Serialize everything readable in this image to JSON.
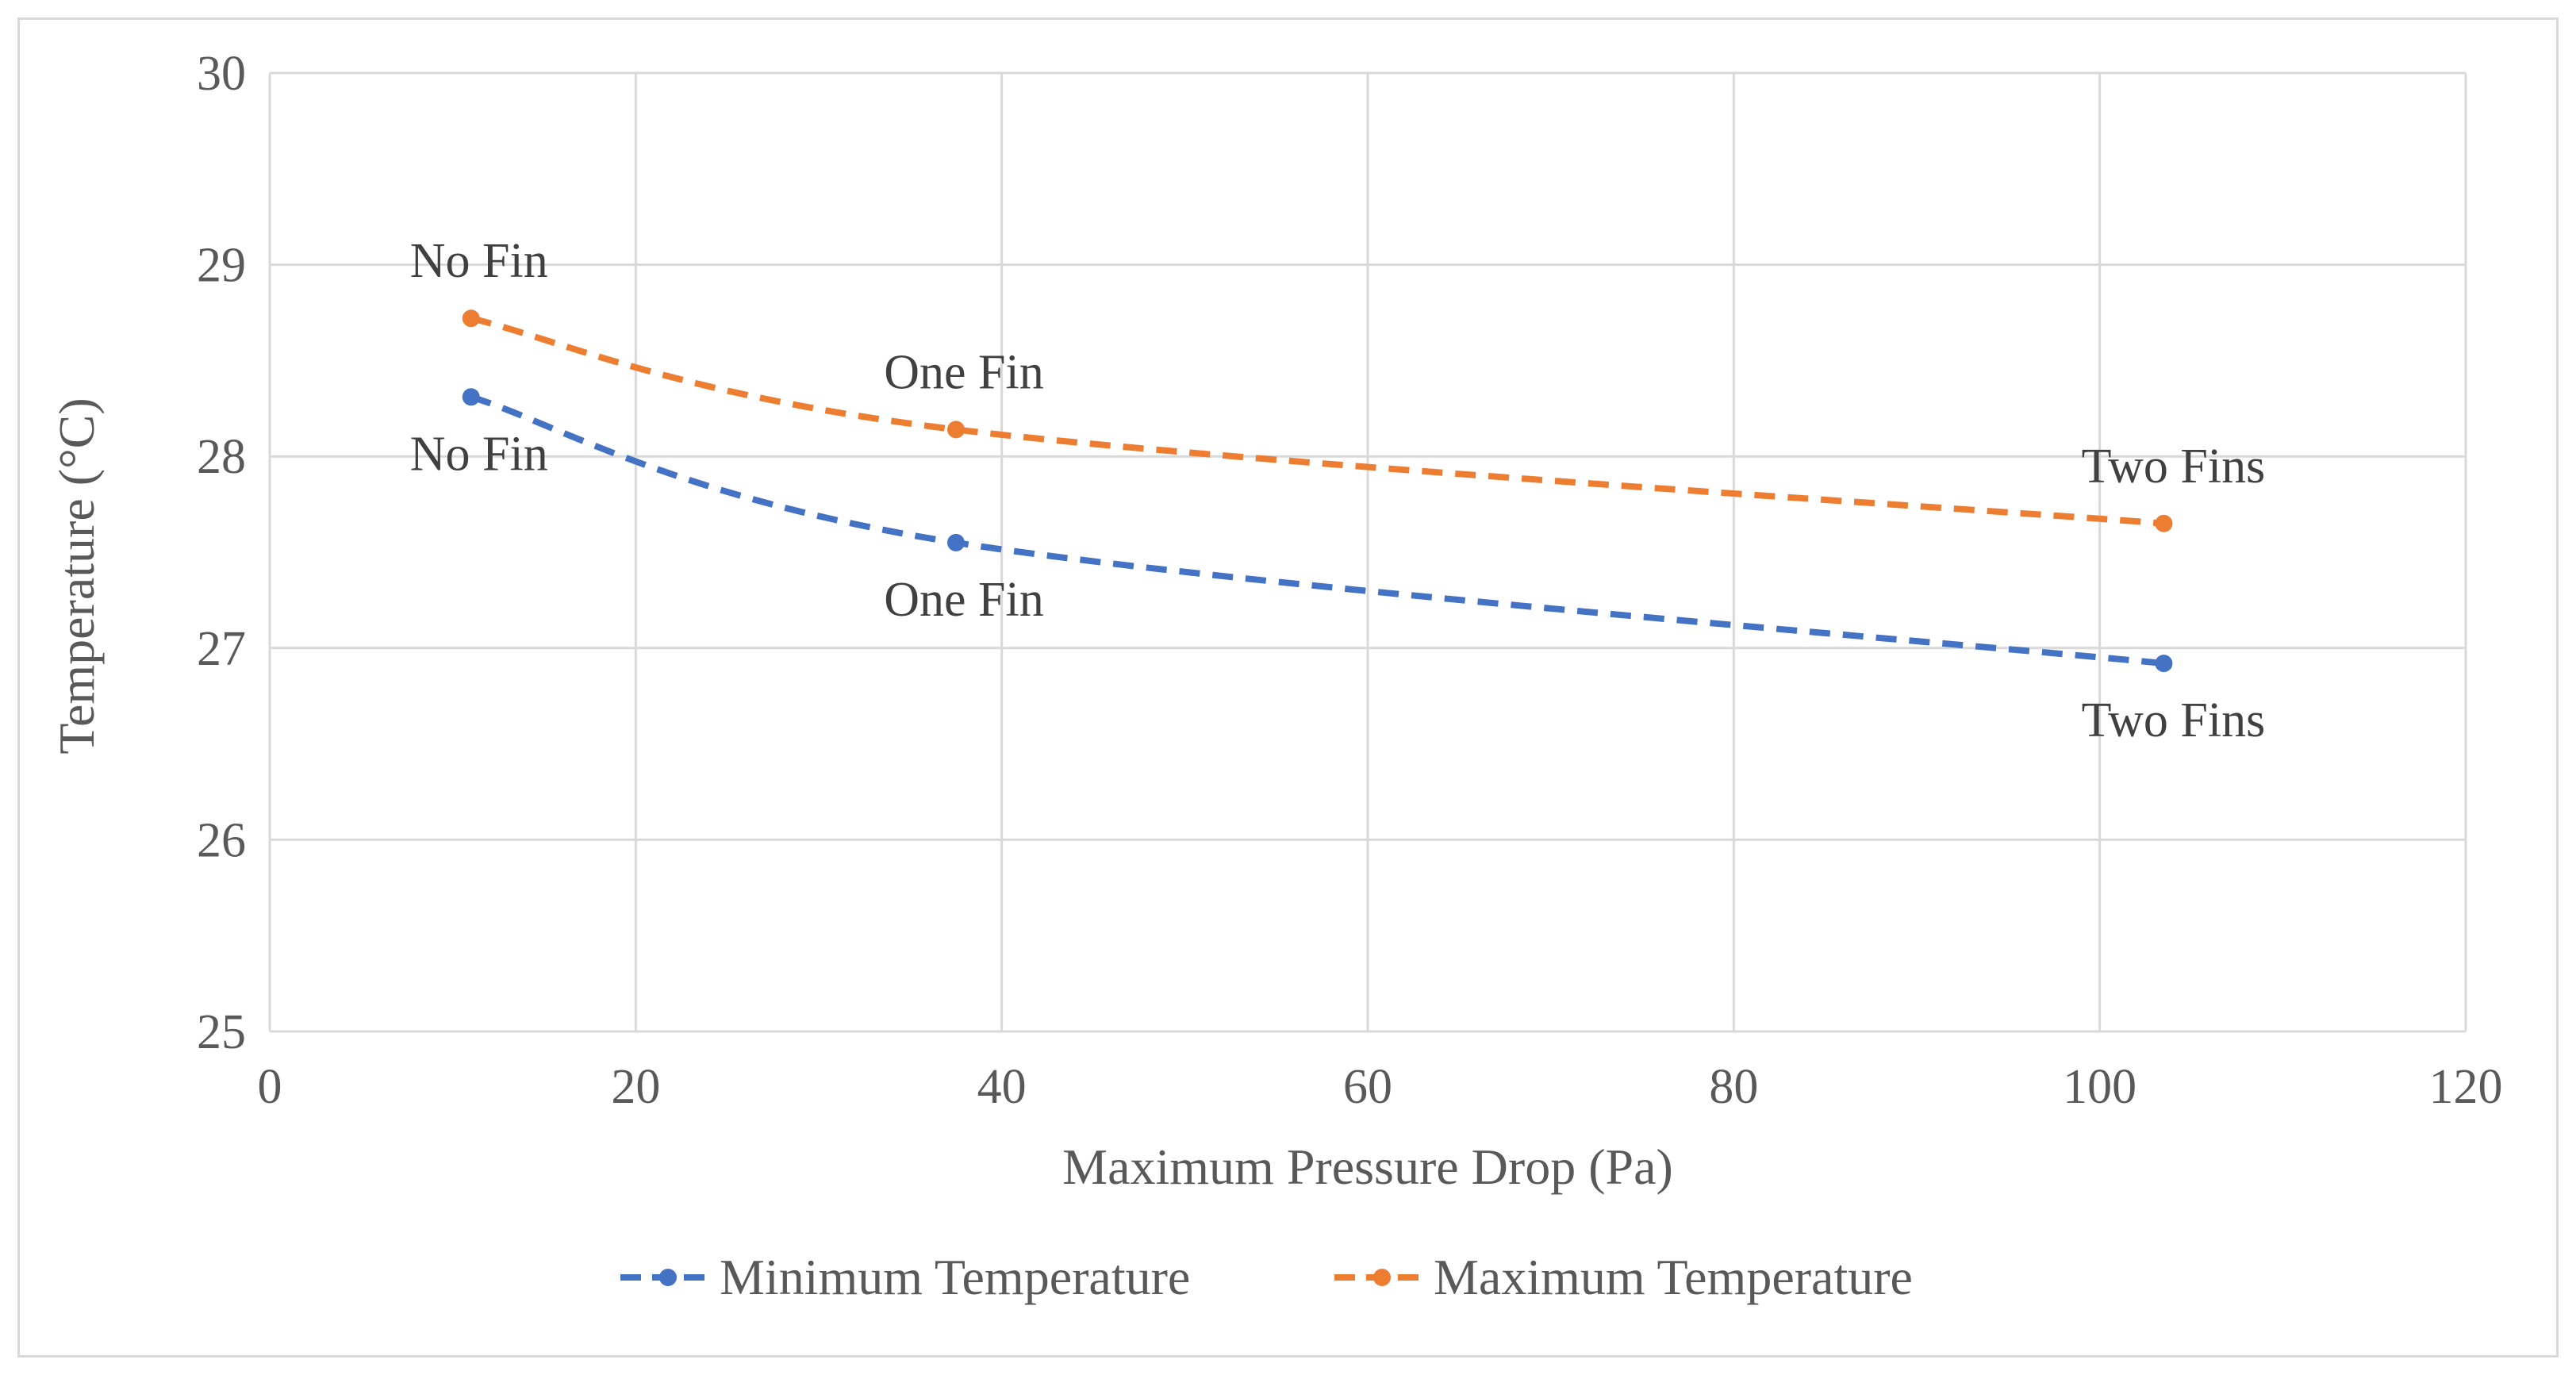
{
  "chart_data": {
    "type": "line",
    "title": "",
    "xlabel": "Maximum Pressure Drop (Pa)",
    "ylabel": "Temperature (°C)",
    "xlim": [
      0,
      120
    ],
    "ylim": [
      25,
      30
    ],
    "x_ticks": [
      0,
      20,
      40,
      60,
      80,
      100,
      120
    ],
    "y_ticks": [
      25,
      26,
      27,
      28,
      29,
      30
    ],
    "grid": true,
    "legend_position": "bottom",
    "series": [
      {
        "name": "Minimum Temperature",
        "color": "#4472c4",
        "line_style": "dashed",
        "x": [
          11,
          37.5,
          103.5
        ],
        "y": [
          28.31,
          27.55,
          26.92
        ],
        "point_labels": [
          "No Fin",
          "One Fin",
          "Two Fins"
        ],
        "label_placement": "below"
      },
      {
        "name": "Maximum Temperature",
        "color": "#ed7d31",
        "line_style": "dashed",
        "x": [
          11,
          37.5,
          103.5
        ],
        "y": [
          28.72,
          28.14,
          27.65
        ],
        "point_labels": [
          "No Fin",
          "One Fin",
          "Two Fins"
        ],
        "label_placement": "above"
      }
    ]
  }
}
